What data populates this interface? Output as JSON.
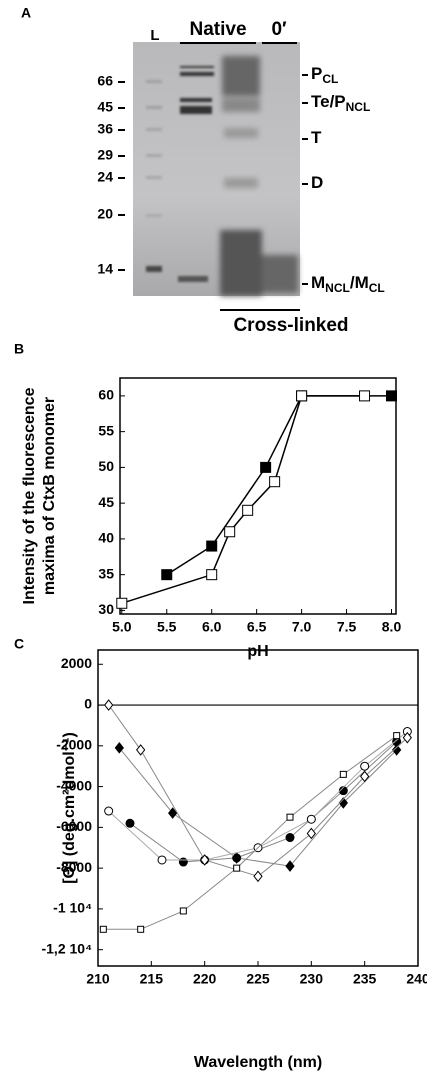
{
  "gel": {
    "panel_label": "A",
    "ladder": "L",
    "native": "Native",
    "zero": "0′",
    "markers": [
      66,
      45,
      36,
      29,
      24,
      20,
      14
    ],
    "bands": [
      {
        "parts": [
          "P",
          "CL"
        ]
      },
      {
        "parts": [
          "Te/P",
          "NCL"
        ]
      },
      {
        "parts": [
          "T"
        ]
      },
      {
        "parts": [
          "D"
        ]
      },
      {
        "parts": [
          "M",
          "NCL",
          "/M",
          "CL"
        ]
      }
    ],
    "footer": "Cross-linked"
  },
  "chart_data": [
    {
      "type": "line",
      "panel_label": "B",
      "xlabel": "pH",
      "ylabel": [
        "Intensity of the fluorescence",
        "maxima of CtxB monomer"
      ],
      "xlim": [
        4.98,
        8.05
      ],
      "ylim": [
        29.5,
        62.5
      ],
      "xticks": [
        {
          "value": 5,
          "label": "5.0"
        },
        {
          "value": 5.5,
          "label": "5.5"
        },
        {
          "value": 6,
          "label": "6.0"
        },
        {
          "value": 6.5,
          "label": "6.5"
        },
        {
          "value": 7,
          "label": "7.0"
        },
        {
          "value": 7.5,
          "label": "7.5"
        },
        {
          "value": 8,
          "label": "8.0"
        }
      ],
      "yticks": [
        30,
        35,
        40,
        45,
        50,
        55,
        60
      ],
      "series": [
        {
          "marker": "square",
          "filled": true,
          "color": "#000000",
          "x": [
            5.5,
            6.0,
            6.6,
            7.0,
            8.0
          ],
          "values": [
            35,
            39,
            50,
            60,
            60
          ]
        },
        {
          "marker": "square",
          "filled": false,
          "color": "#000000",
          "x": [
            5.0,
            6.0,
            6.2,
            6.4,
            6.7,
            7.0,
            7.7
          ],
          "values": [
            31,
            35,
            41,
            44,
            48,
            60,
            60
          ]
        }
      ]
    },
    {
      "type": "line",
      "panel_label": "C",
      "xlabel": "Wavelength (nm)",
      "ylabel": [
        "[Θ] (deg.cm²dmol⁻¹)"
      ],
      "xlim": [
        210,
        240
      ],
      "ylim": [
        -12800,
        2700
      ],
      "xticks": [
        210,
        215,
        220,
        225,
        230,
        235,
        240
      ],
      "yticks": [
        2000,
        0,
        -2000,
        -4000,
        -6000,
        -8000,
        {
          "value": -10000,
          "label": "-1 10⁴"
        },
        {
          "value": -12000,
          "label": "-1,2 10⁴"
        }
      ],
      "zero_line": true,
      "series": [
        {
          "marker": "circle",
          "filled": true,
          "color": "#888888",
          "x": [
            213,
            218,
            223,
            228,
            233,
            238
          ],
          "values": [
            -5800,
            -7700,
            -7500,
            -6500,
            -4200,
            -1800
          ]
        },
        {
          "marker": "diamond",
          "filled": true,
          "color": "#888888",
          "x": [
            212,
            217,
            223,
            228,
            233,
            238
          ],
          "values": [
            -2100,
            -5300,
            -7500,
            -7900,
            -4800,
            -2200
          ]
        },
        {
          "marker": "circle",
          "filled": false,
          "color": "#aaaaaa",
          "x": [
            211,
            216,
            220,
            225,
            230,
            235,
            239
          ],
          "values": [
            -5200,
            -7600,
            -7600,
            -7000,
            -5600,
            -3000,
            -1300
          ]
        },
        {
          "marker": "diamond",
          "filled": false,
          "color": "#888888",
          "x": [
            211,
            214,
            220,
            225,
            230,
            235,
            239
          ],
          "values": [
            0,
            -2200,
            -7600,
            -8400,
            -6300,
            -3500,
            -1600
          ]
        },
        {
          "marker": "square",
          "filled": false,
          "color": "#888888",
          "x": [
            210.5,
            214,
            218,
            223,
            228,
            233,
            238
          ],
          "values": [
            -11000,
            -11000,
            -10100,
            -8000,
            -5500,
            -3400,
            -1500
          ]
        }
      ]
    }
  ]
}
